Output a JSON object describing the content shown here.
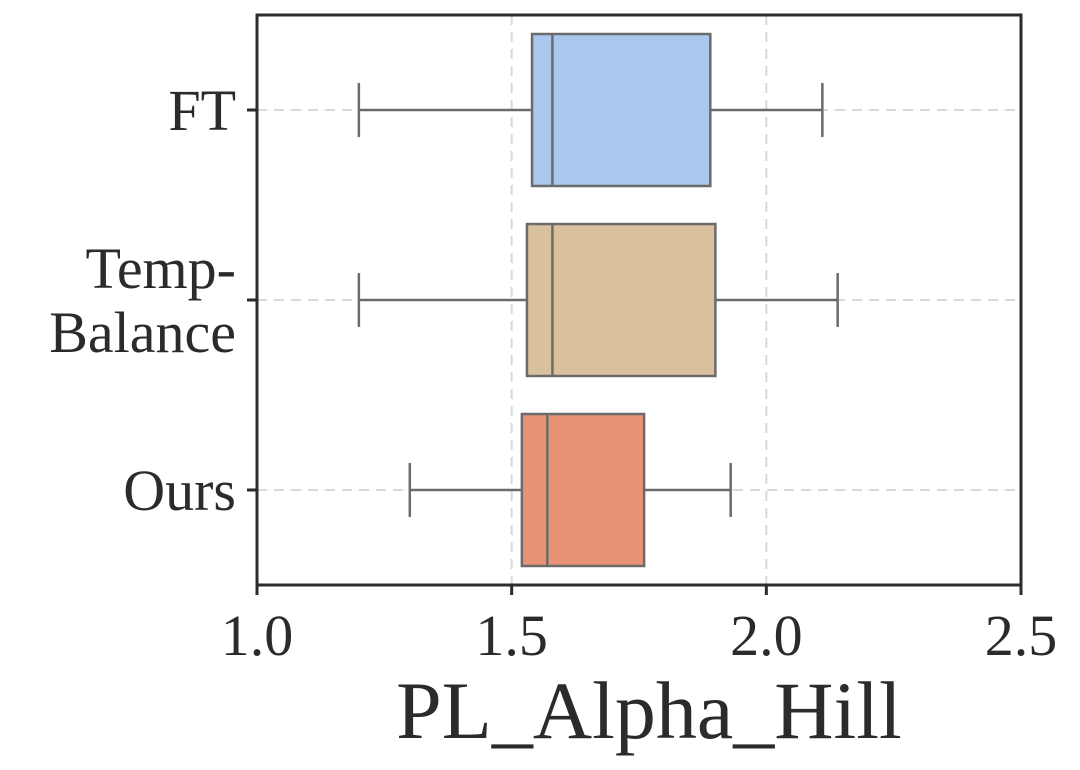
{
  "chart_data": {
    "type": "boxplot",
    "orientation": "horizontal",
    "title": "",
    "xlabel": "PL_Alpha_Hill",
    "ylabel": "",
    "xlim": [
      1.0,
      2.5
    ],
    "xticks": [
      "1.0",
      "1.5",
      "2.0",
      "2.5"
    ],
    "grid": true,
    "categories": [
      {
        "label_lines": [
          "FT"
        ],
        "whisker_low": 1.2,
        "q1": 1.54,
        "median": 1.58,
        "q3": 1.89,
        "whisker_high": 2.11,
        "color": "#a9c8ed"
      },
      {
        "label_lines": [
          "Temp-",
          "Balance"
        ],
        "whisker_low": 1.2,
        "q1": 1.53,
        "median": 1.58,
        "q3": 1.9,
        "whisker_high": 2.14,
        "color": "#d9c19d"
      },
      {
        "label_lines": [
          "Ours"
        ],
        "whisker_low": 1.3,
        "q1": 1.52,
        "median": 1.57,
        "q3": 1.76,
        "whisker_high": 1.93,
        "color": "#e89474"
      }
    ]
  },
  "colors": {
    "axis": "#2b2b2b",
    "box_edge": "#6b6b6b",
    "grid": "#d9d9d9"
  }
}
